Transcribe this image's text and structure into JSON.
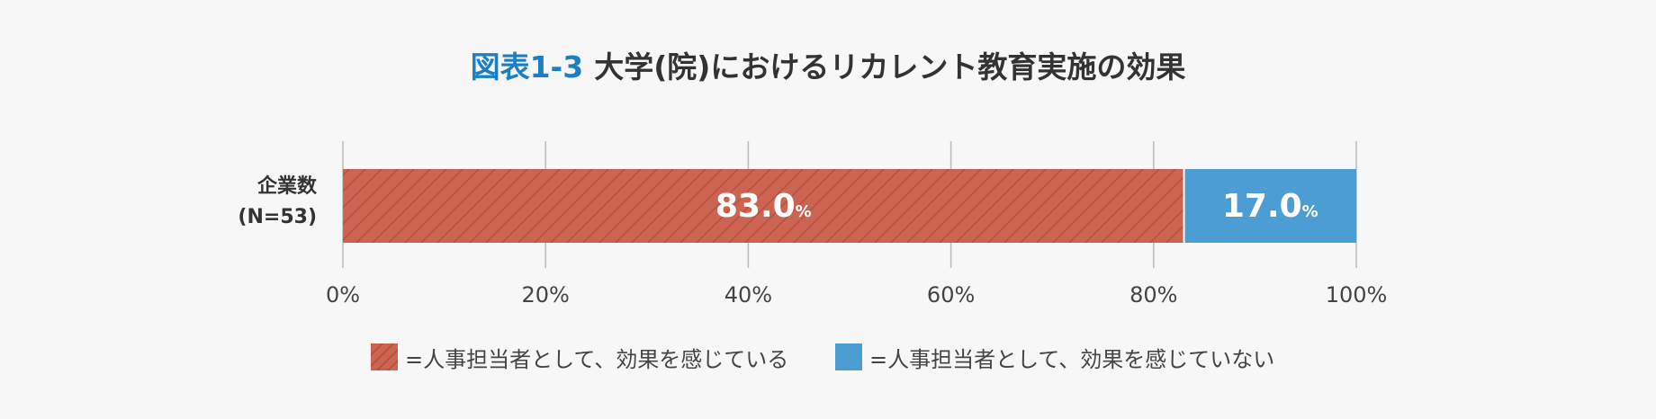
{
  "title": {
    "figure_label": "図表1-3",
    "text": "大学(院)におけるリカレント教育実施の効果"
  },
  "colors": {
    "effect": "#cc6452",
    "no_effect": "#4c9dd3",
    "title_accent": "#1b7fc4",
    "gridline": "#bbbbbb",
    "background": "#f7f7f7"
  },
  "chart_data": {
    "type": "bar",
    "orientation": "horizontal",
    "stacked": true,
    "categories": [
      [
        "企業数",
        "(N=53)"
      ]
    ],
    "series": [
      {
        "name": "=人事担当者として、効果を感じている",
        "values": [
          83.0
        ],
        "label": "83.0",
        "color": "#cc6452",
        "hatched": true
      },
      {
        "name": "=人事担当者として、効果を感じていない",
        "values": [
          17.0
        ],
        "label": "17.0",
        "color": "#4c9dd3",
        "hatched": false
      }
    ],
    "value_suffix": "%",
    "xlim": [
      0,
      100
    ],
    "xticks": [
      0,
      20,
      40,
      60,
      80,
      100
    ],
    "xtick_labels": [
      "0%",
      "20%",
      "40%",
      "60%",
      "80%",
      "100%"
    ],
    "grid": true,
    "legend_position": "bottom"
  }
}
